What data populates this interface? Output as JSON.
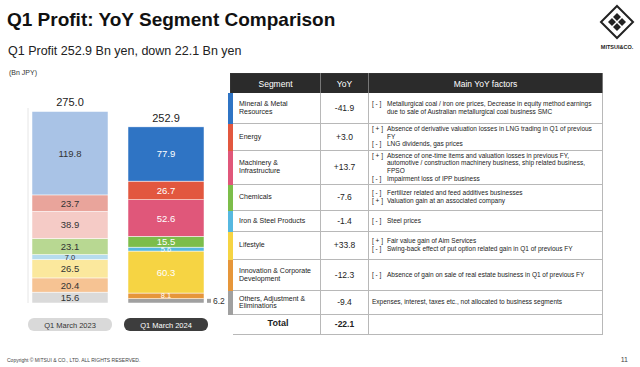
{
  "header": {
    "title": "Q1 Profit: YoY Segment Comparison",
    "subtitle": "Q1 Profit 252.9 Bn yen, down 22.1 Bn yen",
    "logo": "MITSUI&CO."
  },
  "chart_data": {
    "type": "bar",
    "stacked": true,
    "data_labels": true,
    "tick_labels": "x",
    "ylabel": "(Bn JPY)",
    "categories": [
      "Q1 March 2023",
      "Q1 March 2024"
    ],
    "total_labels": [
      "275.0",
      "252.9"
    ],
    "ylim": [
      0,
      280
    ],
    "series": [
      {
        "name": "Mineral & Metal Resources",
        "colors": [
          "#a9c3e6",
          "#2f74c4"
        ],
        "values": [
          119.8,
          77.9
        ],
        "value_labels": [
          "119.8",
          "77.9"
        ]
      },
      {
        "name": "Energy",
        "colors": [
          "#e9a49b",
          "#e2573f"
        ],
        "values": [
          23.7,
          26.7
        ],
        "value_labels": [
          "23.7",
          "26.7"
        ]
      },
      {
        "name": "Machinery & Infrastructure",
        "colors": [
          "#f5cbc6",
          "#e0577a"
        ],
        "values": [
          38.9,
          52.6
        ],
        "value_labels": [
          "38.9",
          "52.6"
        ]
      },
      {
        "name": "Chemicals",
        "colors": [
          "#b8d892",
          "#7cbd4a"
        ],
        "values": [
          23.1,
          15.5
        ],
        "value_labels": [
          "23.1",
          "15.5"
        ]
      },
      {
        "name": "Iron & Steel Products",
        "colors": [
          "#b6dcee",
          "#56b8e0"
        ],
        "values": [
          7.0,
          5.6
        ],
        "value_labels": [
          "7.0",
          "5.6"
        ]
      },
      {
        "name": "Lifestyle",
        "colors": [
          "#fbe89d",
          "#f6d443"
        ],
        "values": [
          26.5,
          60.3
        ],
        "value_labels": [
          "26.5",
          "60.3"
        ]
      },
      {
        "name": "Innovation & Corporate Development",
        "colors": [
          "#f6c393",
          "#e6963a"
        ],
        "values": [
          20.4,
          8.1
        ],
        "value_labels": [
          "20.4",
          "8.1"
        ]
      },
      {
        "name": "Others, Adjustment & Eliminations",
        "colors": [
          "#dadada",
          "#a0a0a0"
        ],
        "values": [
          15.6,
          6.2
        ],
        "value_labels": [
          "15.6",
          "6.2"
        ]
      }
    ]
  },
  "table": {
    "columns": [
      "Segment",
      "YoY",
      "Main YoY factors"
    ],
    "rows": [
      {
        "yoy": "-41.9",
        "factors": [
          {
            "sign": "[ - ]",
            "text": "Metallurgical coal / iron ore prices, Decrease in equity method earnings due to sale of Australian metallurgical coal business SMC"
          }
        ]
      },
      {
        "yoy": "+3.0",
        "factors": [
          {
            "sign": "[ + ]",
            "text": "Absence of derivative valuation losses in LNG trading in Q1 of previous FY"
          },
          {
            "sign": "[ - ]",
            "text": "LNG dividends, gas prices"
          }
        ]
      },
      {
        "yoy": "+13.7",
        "factors": [
          {
            "sign": "[ + ]",
            "text": "Absence of one-time items and valuation losses in previous FY, automotive / construction machinery business, ship related business, FPSO"
          },
          {
            "sign": "[ - ]",
            "text": "Impairment loss of IPP business"
          }
        ]
      },
      {
        "yoy": "-7.6",
        "factors": [
          {
            "sign": "[ - ]",
            "text": "Fertilizer related and feed additives businesses"
          },
          {
            "sign": "[ + ]",
            "text": "Valuation gain at an associated company"
          }
        ]
      },
      {
        "yoy": "-1.4",
        "factors": [
          {
            "sign": "[ - ]",
            "text": "Steel prices"
          }
        ]
      },
      {
        "yoy": "+33.8",
        "factors": [
          {
            "sign": "[ + ]",
            "text": "Fair value gain of Aim Services"
          },
          {
            "sign": "[ - ]",
            "text": "Swing-back effect of put option related gain in Q1 of previous FY"
          }
        ]
      },
      {
        "yoy": "-12.3",
        "factors": [
          {
            "sign": "[ - ]",
            "text": "Absence of gain on sale of real estate business in Q1 of previous FY"
          }
        ]
      },
      {
        "yoy": "-9.4",
        "factors": [
          {
            "text": "Expenses, interest, taxes etc., not allocated to business segments"
          }
        ]
      }
    ],
    "total": {
      "label": "Total",
      "yoy": "-22.1"
    }
  },
  "footer": {
    "copyright": "Copyright © MITSUI & CO., LTD. ALL RIGHTS RESERVED.",
    "page": "11"
  }
}
